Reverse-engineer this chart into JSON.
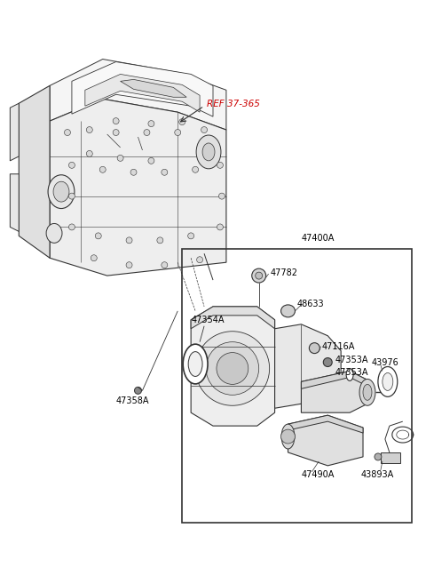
{
  "bg_color": "#ffffff",
  "line_color": "#333333",
  "label_color": "#000000",
  "ref_color": "#cc0000",
  "labels": {
    "REF_37_365": "REF 37-365",
    "47400A": "47400A",
    "47782": "47782",
    "47354A": "47354A",
    "48633": "48633",
    "47116A": "47116A",
    "47353A_1": "47353A",
    "47353A_2": "47353A",
    "43976": "43976",
    "47490A": "47490A",
    "47358A": "47358A",
    "43893A": "43893A"
  }
}
